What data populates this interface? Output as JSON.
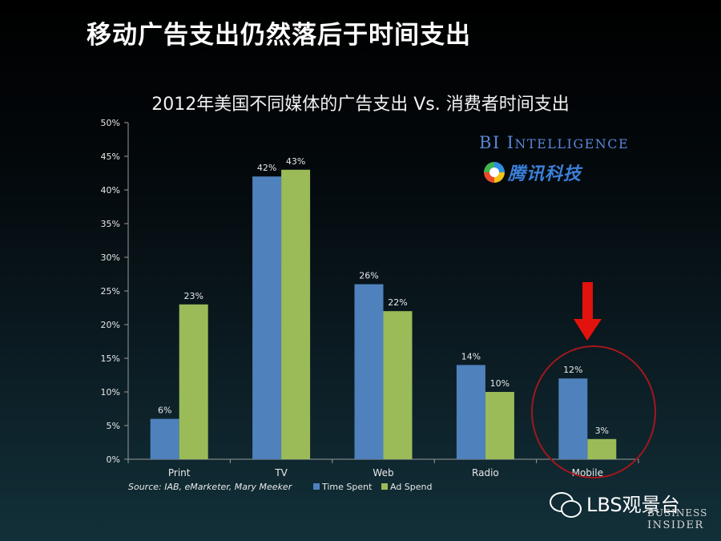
{
  "slide": {
    "title": "移动广告支出仍然落后于时间支出"
  },
  "logos": {
    "bi_intelligence": {
      "B": "B",
      "I": "I",
      "sp": " ",
      "I2": "I",
      "rest": "NTELLIGENCE"
    },
    "tencent_tech": "腾讯科技",
    "watermark": "LBS观景台",
    "business_insider_line1": "BUSINESS",
    "business_insider_line2": "INSIDER"
  },
  "colors": {
    "time_spent": "#4f81bd",
    "ad_spend": "#9bbb59",
    "arrow": "#e2120c",
    "circle": "#a3171d"
  },
  "chart_data": {
    "type": "bar",
    "title": "2012年美国不同媒体的广告支出 Vs. 消费者时间支出",
    "categories": [
      "Print",
      "TV",
      "Web",
      "Radio",
      "Mobile"
    ],
    "series": [
      {
        "name": "Time Spent",
        "values": [
          6,
          42,
          26,
          14,
          12
        ],
        "labels": [
          "6%",
          "42%",
          "26%",
          "14%",
          "12%"
        ]
      },
      {
        "name": "Ad Spend",
        "values": [
          23,
          43,
          22,
          10,
          3
        ],
        "labels": [
          "23%",
          "43%",
          "22%",
          "10%",
          "3%"
        ]
      }
    ],
    "ylim": [
      0,
      50
    ],
    "yticks": [
      0,
      5,
      10,
      15,
      20,
      25,
      30,
      35,
      40,
      45,
      50
    ],
    "ytick_labels": [
      "0%",
      "5%",
      "10%",
      "15%",
      "20%",
      "25%",
      "30%",
      "35%",
      "40%",
      "45%",
      "50%"
    ],
    "xlabel": "",
    "ylabel": "",
    "legend": "bottom",
    "source": "Source:  IAB, eMarketer, Mary Meeker",
    "highlight": "Mobile"
  }
}
